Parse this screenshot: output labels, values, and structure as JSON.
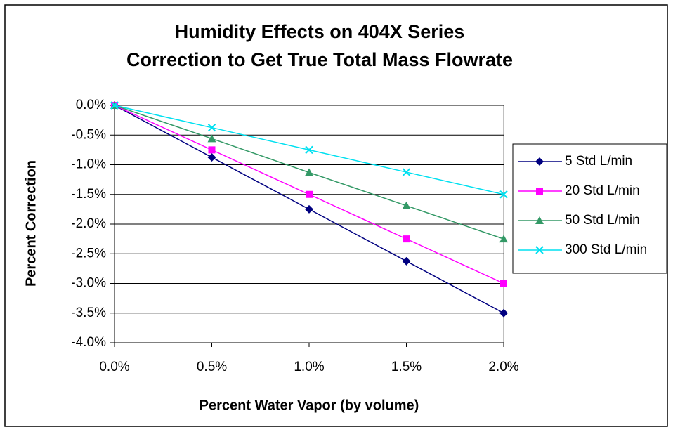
{
  "chart_data": {
    "type": "line",
    "title": "Humidity Effects on 404X Series",
    "subtitle": "Correction to Get True Total Mass Flowrate",
    "x_label": "Percent Water Vapor (by volume)",
    "y_label": "Percent Correction",
    "x": [
      0,
      0.5,
      1,
      1.5,
      2
    ],
    "xlim": [
      0,
      2
    ],
    "xticks": [
      {
        "value": 0,
        "label": "0.0%"
      },
      {
        "value": 0.5,
        "label": "0.5%"
      },
      {
        "value": 1,
        "label": "1.0%"
      },
      {
        "value": 1.5,
        "label": "1.5%"
      },
      {
        "value": 2,
        "label": "2.0%"
      }
    ],
    "ylim": [
      -4,
      0
    ],
    "yticks": [
      {
        "value": 0,
        "label": "0.0%"
      },
      {
        "value": -0.5,
        "label": "-0.5%"
      },
      {
        "value": -1,
        "label": "-1.0%"
      },
      {
        "value": -1.5,
        "label": "-1.5%"
      },
      {
        "value": -2,
        "label": "-2.0%"
      },
      {
        "value": -2.5,
        "label": "-2.5%"
      },
      {
        "value": -3,
        "label": "-3.0%"
      },
      {
        "value": -3.5,
        "label": "-3.5%"
      },
      {
        "value": -4,
        "label": "-4.0%"
      }
    ],
    "grid": true,
    "legend": "right",
    "series": [
      {
        "name": "5 Std L/min",
        "color": "#000080",
        "marker": "diamond",
        "values": [
          0,
          -0.875,
          -1.75,
          -2.625,
          -3.5
        ]
      },
      {
        "name": "20 Std L/min",
        "color": "#ff00ff",
        "marker": "square",
        "values": [
          0,
          -0.75,
          -1.5,
          -2.25,
          -3.0
        ]
      },
      {
        "name": "50 Std L/min",
        "color": "#339966",
        "marker": "triangle",
        "values": [
          0,
          -0.56,
          -1.13,
          -1.69,
          -2.25
        ]
      },
      {
        "name": "300 Std L/min",
        "color": "#00e0f0",
        "marker": "cross",
        "values": [
          0,
          -0.375,
          -0.75,
          -1.125,
          -1.5
        ]
      }
    ]
  }
}
